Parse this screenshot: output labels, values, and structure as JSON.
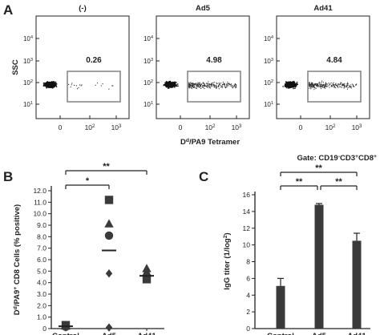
{
  "panels": {
    "a": "A",
    "b": "B",
    "c": "C"
  },
  "chart_data": [
    {
      "type": "scatter",
      "subtype": "flow-cytometry-dot-plots",
      "panel": "A",
      "ylabel": "SSC",
      "xlabel": "D|d|/PA9 Tetramer",
      "gate_label": "Gate: CD19|-|CD3|+|CD8|+|",
      "y_ticks": [
        {
          "base": "10",
          "exp": "1"
        },
        {
          "base": "10",
          "exp": "2"
        },
        {
          "base": "10",
          "exp": "3"
        },
        {
          "base": "10",
          "exp": "4"
        }
      ],
      "x_ticks": [
        {
          "base": "0",
          "exp": ""
        },
        {
          "base": "10",
          "exp": "2"
        },
        {
          "base": "10",
          "exp": "3"
        }
      ],
      "plots": [
        {
          "title": "(-)",
          "gate_percent": "0.26",
          "positive_events": "few"
        },
        {
          "title": "Ad5",
          "gate_percent": "4.98",
          "positive_events": "many"
        },
        {
          "title": "Ad41",
          "gate_percent": "4.84",
          "positive_events": "many"
        }
      ]
    },
    {
      "type": "scatter",
      "panel": "B",
      "ylabel": "D|d|/PA9|+| CD8 Cells (% positive)",
      "ylim": [
        0,
        12.0
      ],
      "yticks": [
        "0",
        "1.0",
        "2.0",
        "3.0",
        "4.0",
        "5.0",
        "6.0",
        "7.0",
        "8.0",
        "9.0",
        "10.0",
        "11.0",
        "12.0"
      ],
      "categories": [
        "Control",
        "Ad5",
        "Ad41"
      ],
      "points": [
        {
          "group": "Control",
          "y": 0.3,
          "marker": "square"
        },
        {
          "group": "Control",
          "y": 0.2,
          "marker": "triangle"
        },
        {
          "group": "Control",
          "y": 0.15,
          "marker": "circle"
        },
        {
          "group": "Control",
          "y": 0.1,
          "marker": "diamond"
        },
        {
          "group": "Ad5",
          "y": 11.2,
          "marker": "square"
        },
        {
          "group": "Ad5",
          "y": 9.1,
          "marker": "triangle"
        },
        {
          "group": "Ad5",
          "y": 8.1,
          "marker": "circle"
        },
        {
          "group": "Ad5",
          "y": 4.8,
          "marker": "diamond"
        },
        {
          "group": "Ad5",
          "y": 0.1,
          "marker": "diamond"
        },
        {
          "group": "Ad41",
          "y": 5.2,
          "marker": "triangle"
        },
        {
          "group": "Ad41",
          "y": 4.9,
          "marker": "triangle"
        },
        {
          "group": "Ad41",
          "y": 4.7,
          "marker": "diamond"
        },
        {
          "group": "Ad41",
          "y": 4.5,
          "marker": "circle"
        },
        {
          "group": "Ad41",
          "y": 4.3,
          "marker": "square"
        }
      ],
      "means": [
        {
          "group": "Control",
          "y": 0.2
        },
        {
          "group": "Ad5",
          "y": 6.8
        },
        {
          "group": "Ad41",
          "y": 4.6
        }
      ],
      "significance": [
        {
          "from": "Control",
          "to": "Ad5",
          "label": "*"
        },
        {
          "from": "Control",
          "to": "Ad41",
          "label": "**"
        }
      ]
    },
    {
      "type": "bar",
      "panel": "C",
      "ylabel": "IgG titer (1/log|2|)",
      "ylim": [
        0,
        16
      ],
      "yticks": [
        "0",
        "2",
        "4",
        "6",
        "8",
        "10",
        "12",
        "14",
        "16"
      ],
      "categories": [
        "Control",
        "Ad5",
        "Ad41"
      ],
      "values": [
        5.1,
        14.8,
        10.5
      ],
      "errors": [
        0.9,
        0.15,
        0.9
      ],
      "significance": [
        {
          "from": "Control",
          "to": "Ad5",
          "label": "**"
        },
        {
          "from": "Ad5",
          "to": "Ad41",
          "label": "**"
        },
        {
          "from": "Control",
          "to": "Ad41",
          "label": "**"
        }
      ]
    }
  ]
}
